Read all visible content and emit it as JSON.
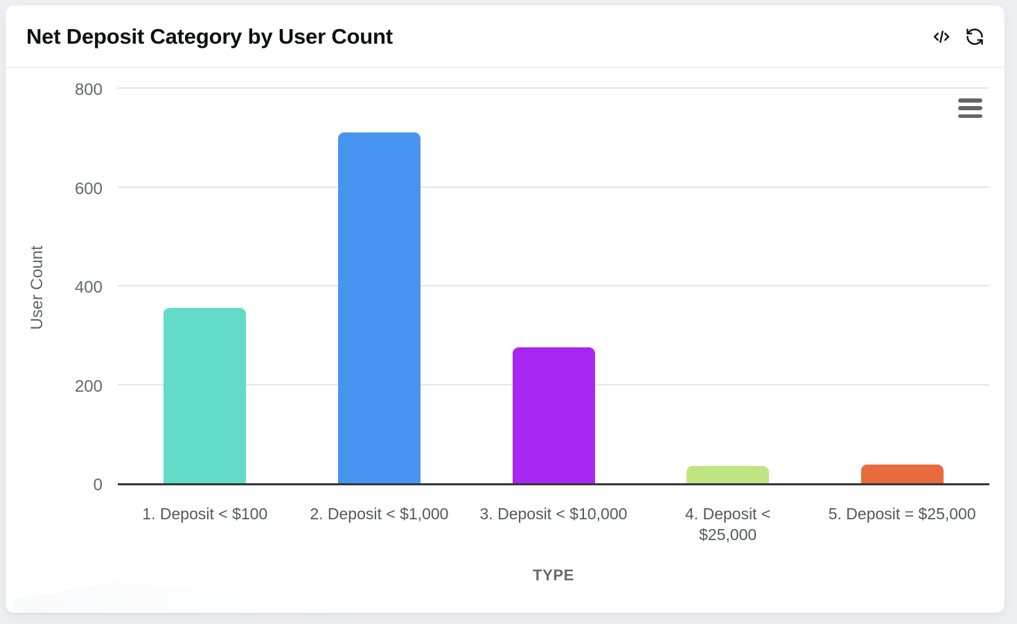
{
  "card": {
    "title": "Net Deposit Category by User Count",
    "header_icons": [
      {
        "name": "code-icon"
      },
      {
        "name": "refresh-icon"
      }
    ],
    "menu_icon": "hamburger-menu-icon"
  },
  "chart_data": {
    "type": "bar",
    "title": "Net Deposit Category by User Count",
    "categories": [
      "1. Deposit < $100",
      "2. Deposit < $1,000",
      "3. Deposit < $10,000",
      "4. Deposit < $25,000",
      "5. Deposit = $25,000"
    ],
    "values": [
      355,
      710,
      275,
      35,
      38
    ],
    "bar_colors": [
      "#62DCC8",
      "#4895F1",
      "#A726F2",
      "#C0E684",
      "#E96A3C"
    ],
    "xlabel": "TYPE",
    "ylabel": "User Count",
    "ylim": [
      0,
      800
    ],
    "yticks": [
      0,
      200,
      400,
      600,
      800
    ],
    "grid": true,
    "legend": false,
    "axis_line_color": "#343639",
    "grid_color": "#e6e6e6",
    "wrap_category_index": 3
  }
}
